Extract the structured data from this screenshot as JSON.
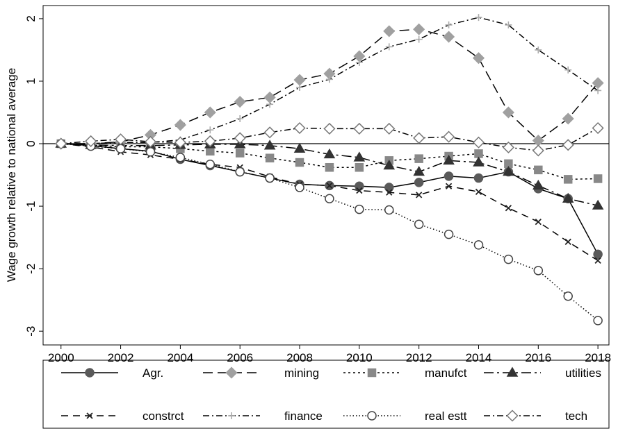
{
  "chart_data": {
    "type": "line",
    "y_label": "Wage growth relative to national average",
    "x": [
      2000,
      2001,
      2002,
      2003,
      2004,
      2005,
      2006,
      2007,
      2008,
      2009,
      2010,
      2011,
      2012,
      2013,
      2014,
      2015,
      2016,
      2017,
      2018
    ],
    "xlim": [
      1999.4,
      2018.37
    ],
    "xticks": [
      2000,
      2002,
      2004,
      2006,
      2008,
      2010,
      2012,
      2014,
      2016,
      2018
    ],
    "ylim": [
      -3.22,
      2.21
    ],
    "yticks": [
      -3,
      -2,
      -1,
      0,
      1,
      2
    ],
    "yline": 0,
    "line_color": "#000000",
    "legend": "bottom",
    "series": [
      {
        "name": "Agr.",
        "color": "#5a5a5a",
        "marker": "circle",
        "filled": true,
        "dash": "solid",
        "values": [
          0,
          -0.03,
          -0.08,
          -0.12,
          -0.25,
          -0.35,
          -0.45,
          -0.55,
          -0.65,
          -0.67,
          -0.68,
          -0.7,
          -0.62,
          -0.52,
          -0.55,
          -0.45,
          -0.72,
          -0.88,
          -1.77
        ]
      },
      {
        "name": "mining",
        "color": "#a0a0a0",
        "marker": "diamond",
        "filled": true,
        "dash": "longdash",
        "values": [
          0,
          0,
          0.03,
          0.14,
          0.3,
          0.5,
          0.67,
          0.74,
          1.02,
          1.12,
          1.4,
          1.8,
          1.83,
          1.71,
          1.37,
          0.5,
          0.05,
          0.4,
          0.97
        ]
      },
      {
        "name": "manufct",
        "color": "#888888",
        "marker": "square",
        "filled": true,
        "dash": "dot",
        "values": [
          0,
          -0.02,
          -0.05,
          -0.05,
          -0.08,
          -0.12,
          -0.15,
          -0.23,
          -0.3,
          -0.38,
          -0.38,
          -0.27,
          -0.24,
          -0.2,
          -0.16,
          -0.32,
          -0.42,
          -0.57,
          -0.56
        ]
      },
      {
        "name": "utilities",
        "color": "#333333",
        "marker": "triangle",
        "filled": true,
        "dash": "longdashdot",
        "values": [
          0,
          -0.02,
          -0.03,
          -0.03,
          -0.02,
          -0.01,
          -0.01,
          -0.03,
          -0.08,
          -0.17,
          -0.22,
          -0.35,
          -0.45,
          -0.27,
          -0.3,
          -0.45,
          -0.67,
          -0.88,
          -0.99
        ]
      },
      {
        "name": "constrct",
        "color": "#222222",
        "marker": "x",
        "filled": false,
        "dash": "dash",
        "values": [
          0,
          -0.05,
          -0.13,
          -0.18,
          -0.25,
          -0.33,
          -0.38,
          -0.53,
          -0.65,
          -0.67,
          -0.75,
          -0.78,
          -0.82,
          -0.68,
          -0.77,
          -1.03,
          -1.25,
          -1.57,
          -1.87
        ]
      },
      {
        "name": "finance",
        "color": "#aaaaaa",
        "marker": "plus",
        "filled": false,
        "dash": "dashdot",
        "values": [
          0,
          0,
          0.02,
          0.02,
          0.06,
          0.22,
          0.4,
          0.63,
          0.9,
          1.03,
          1.3,
          1.55,
          1.67,
          1.9,
          2.02,
          1.9,
          1.5,
          1.18,
          0.85
        ]
      },
      {
        "name": "real estt",
        "color": "#444444",
        "marker": "circle",
        "filled": false,
        "dash": "shortdot",
        "values": [
          0,
          -0.04,
          -0.08,
          -0.13,
          -0.22,
          -0.33,
          -0.45,
          -0.55,
          -0.7,
          -0.88,
          -1.05,
          -1.06,
          -1.29,
          -1.45,
          -1.62,
          -1.85,
          -2.03,
          -2.44,
          -2.83
        ]
      },
      {
        "name": "tech",
        "color": "#777777",
        "marker": "diamond",
        "filled": false,
        "dash": "dashdot",
        "values": [
          0,
          0.04,
          0.07,
          0.03,
          0.02,
          0.04,
          0.09,
          0.18,
          0.25,
          0.24,
          0.24,
          0.24,
          0.09,
          0.11,
          0.02,
          -0.06,
          -0.11,
          -0.02,
          0.25
        ]
      }
    ]
  }
}
